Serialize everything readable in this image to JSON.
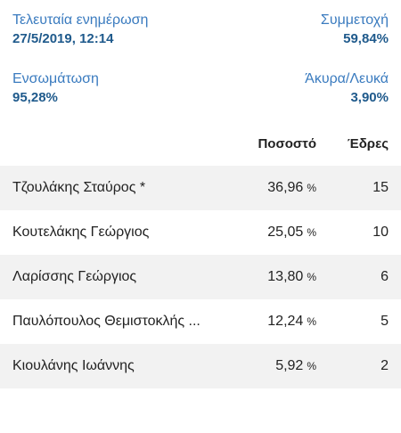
{
  "stats": {
    "updated_label": "Τελευταία ενημέρωση",
    "updated_value": "27/5/2019, 12:14",
    "turnout_label": "Συμμετοχή",
    "turnout_value": "59,84%",
    "integration_label": "Ενσωμάτωση",
    "integration_value": "95,28%",
    "invalid_label": "Άκυρα/Λευκά",
    "invalid_value": "3,90%"
  },
  "table": {
    "header_percent": "Ποσοστό",
    "header_seats": "Έδρες",
    "rows": [
      {
        "name": "Τζουλάκης Σταύρος *",
        "percent": "36,96",
        "unit": "%",
        "seats": "15"
      },
      {
        "name": "Κουτελάκης Γεώργιος",
        "percent": "25,05",
        "unit": "%",
        "seats": "10"
      },
      {
        "name": "Λαρίσσης Γεώργιος",
        "percent": "13,80",
        "unit": "%",
        "seats": "6"
      },
      {
        "name": "Παυλόπουλος Θεμιστοκλής ...",
        "percent": "12,24",
        "unit": "%",
        "seats": "5"
      },
      {
        "name": "Κιουλάνης Ιωάννης",
        "percent": "5,92",
        "unit": "%",
        "seats": "2"
      }
    ]
  },
  "colors": {
    "label_blue": "#3a7bbf",
    "value_blue": "#1f5a8c",
    "row_alt_bg": "#f2f2f2"
  }
}
